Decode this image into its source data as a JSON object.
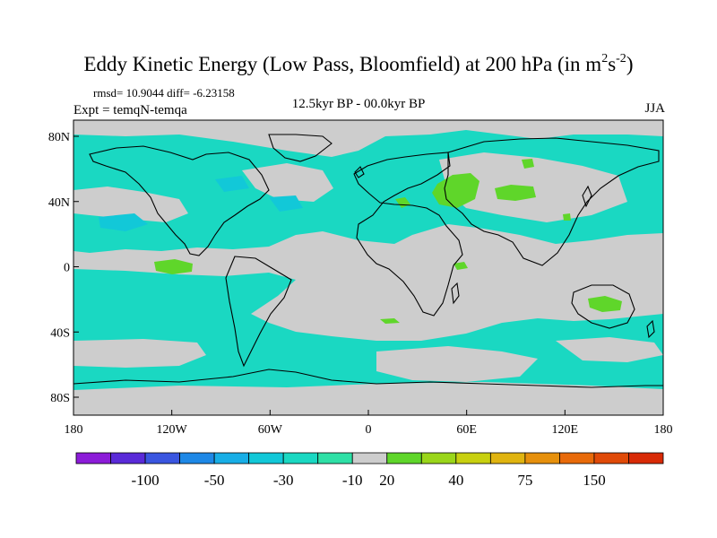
{
  "header": {
    "title_main": "Eddy Kinetic Energy (Low Pass, Bloomfield) at 200 hPa (in m",
    "title_sup1": "2",
    "title_mid": "s",
    "title_sup2": "-2",
    "title_end": ")",
    "stats": "rmsd= 10.9044  diff= -6.23158",
    "expt": "Expt = temqN-temqa",
    "center": "12.5kyr BP - 00.0kyr BP",
    "season": "JJA"
  },
  "axes": {
    "x_ticks": [
      "180",
      "120W",
      "60W",
      "0",
      "60E",
      "120E",
      "180"
    ],
    "y_ticks": [
      "80N",
      "40N",
      "0",
      "40S",
      "80S"
    ]
  },
  "colorbar": {
    "colors": [
      "#8c1cd8",
      "#5a2ad8",
      "#3a56e0",
      "#1e88e6",
      "#18aee6",
      "#12c8d8",
      "#1ad8c2",
      "#2ee0a6",
      "#cdcdcd",
      "#5fd62a",
      "#9ad61a",
      "#c8d010",
      "#e0b410",
      "#e6900c",
      "#e86a0a",
      "#e04a08",
      "#d82a06"
    ],
    "labels": [
      "-100",
      "-50",
      "-30",
      "-10",
      "20",
      "40",
      "75",
      "150"
    ]
  },
  "colors": {
    "ocean_background": "#cdcdcd",
    "negative_anomaly": "#1ad8c2",
    "strong_negative": "#12c8d8",
    "positive_anomaly": "#5fd62a"
  }
}
